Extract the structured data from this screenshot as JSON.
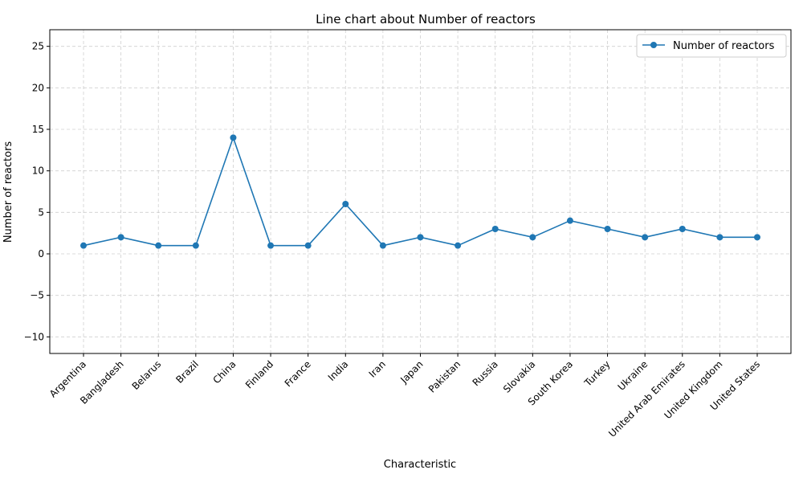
{
  "chart_data": {
    "type": "line",
    "title": "Line chart about Number of reactors",
    "xlabel": "Characteristic",
    "ylabel": "Number of reactors",
    "categories": [
      "Argentina",
      "Bangladesh",
      "Belarus",
      "Brazil",
      "China",
      "Finland",
      "France",
      "India",
      "Iran",
      "Japan",
      "Pakistan",
      "Russia",
      "Slovakia",
      "South Korea",
      "Turkey",
      "Ukraine",
      "United Arab Emirates",
      "United Kingdom",
      "United States"
    ],
    "series": [
      {
        "name": "Number of reactors",
        "values": [
          1,
          2,
          1,
          1,
          14,
          1,
          1,
          6,
          1,
          2,
          1,
          3,
          2,
          4,
          3,
          2,
          3,
          2,
          2
        ]
      }
    ],
    "ylim": [
      -12,
      27
    ],
    "yticks": [
      -10,
      -5,
      0,
      5,
      10,
      15,
      20,
      25
    ],
    "grid": true,
    "legend_position": "top-right",
    "colors": {
      "series": "#1f77b4"
    }
  }
}
